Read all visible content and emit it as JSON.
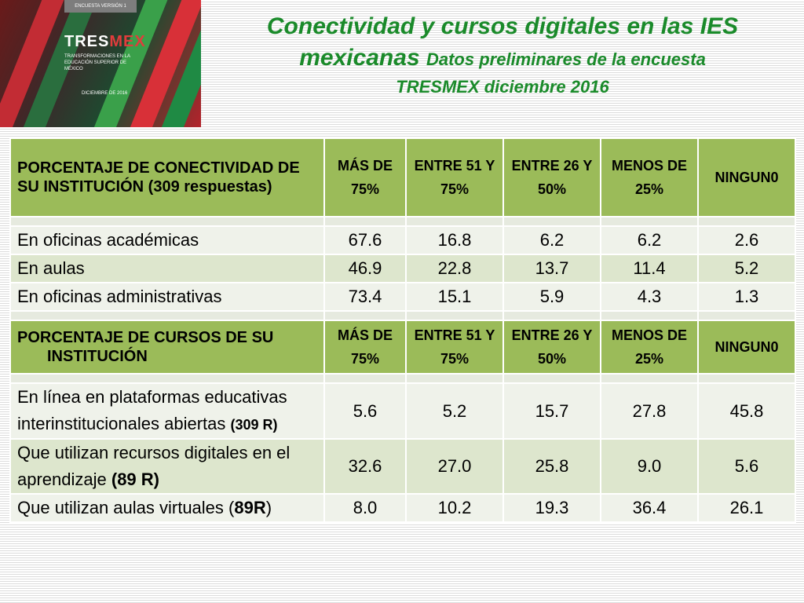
{
  "cover": {
    "version_label": "ENCUESTA VERSIÓN 1",
    "brand_a": "TRES",
    "brand_b": "MEX",
    "subtitle": "TRANSFORMACIONES EN LA EDUCACIÓN SUPERIOR DE MÉXICO",
    "date": "DICIEMBRE DE 2016"
  },
  "title": {
    "line1": "Conectividad y cursos digitales en las IES",
    "line2_main": "mexicanas",
    "line2_small": "Datos preliminares de la encuesta",
    "line3": "TRESMEX diciembre 2016"
  },
  "columns": [
    "MÁS DE 75%",
    "ENTRE 51 Y 75%",
    "ENTRE 26 Y 50%",
    "MENOS DE 25%",
    "NINGUN0"
  ],
  "connectivity": {
    "header": "PORCENTAJE DE CONECTIVIDAD DE SU INSTITUCIÓN  (309 respuestas)",
    "rows": [
      {
        "label": "En oficinas académicas",
        "values": [
          "67.6",
          "16.8",
          "6.2",
          "6.2",
          "2.6"
        ]
      },
      {
        "label": "En aulas",
        "values": [
          "46.9",
          "22.8",
          "13.7",
          "11.4",
          "5.2"
        ]
      },
      {
        "label": "En oficinas administrativas",
        "values": [
          "73.4",
          "15.1",
          "5.9",
          "4.3",
          "1.3"
        ]
      }
    ]
  },
  "courses": {
    "header_line1": "PORCENTAJE DE CURSOS DE SU",
    "header_line2": "INSTITUCIÓN",
    "rows": [
      {
        "label": "En línea en plataformas educativas interinstitucionales abiertas ",
        "suffix": "(309 R)",
        "values": [
          "5.6",
          "5.2",
          "15.7",
          "27.8",
          "45.8"
        ]
      },
      {
        "label": "Que utilizan recursos digitales en el aprendizaje ",
        "suffix": "(89 R)",
        "values": [
          "32.6",
          "27.0",
          "25.8",
          "9.0",
          "5.6"
        ]
      },
      {
        "label": "Que utilizan aulas virtuales (",
        "suffix": "89R",
        "tail": ")",
        "values": [
          "8.0",
          "10.2",
          "19.3",
          "36.4",
          "26.1"
        ]
      }
    ]
  }
}
